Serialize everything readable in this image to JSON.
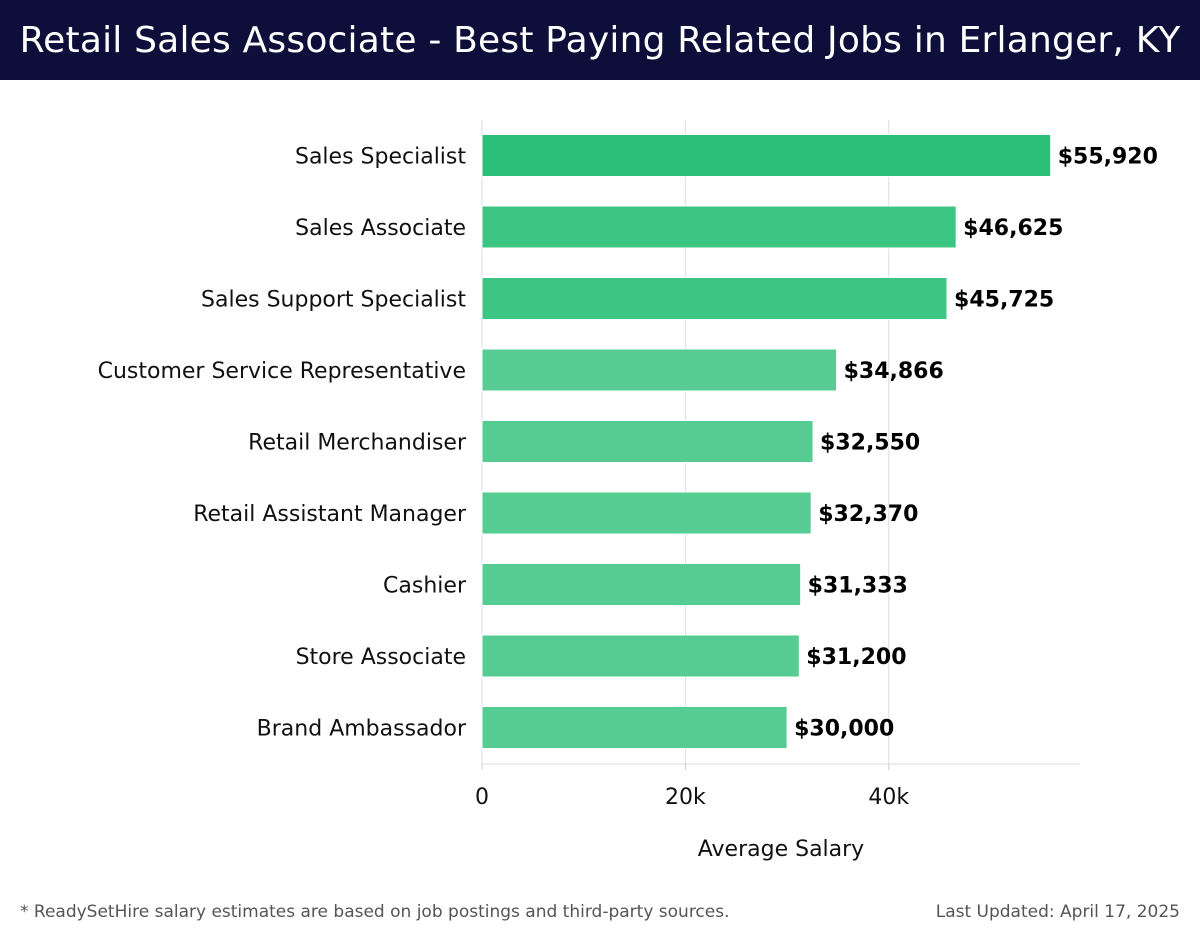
{
  "header": {
    "title": "Retail Sales Associate - Best Paying Related Jobs in Erlanger, KY"
  },
  "chart_data": {
    "type": "bar",
    "orientation": "horizontal",
    "categories": [
      "Sales Specialist",
      "Sales Associate",
      "Sales Support Specialist",
      "Customer Service Representative",
      "Retail Merchandiser",
      "Retail Assistant Manager",
      "Cashier",
      "Store Associate",
      "Brand Ambassador"
    ],
    "values": [
      55920,
      46625,
      45725,
      34866,
      32550,
      32370,
      31333,
      31200,
      30000
    ],
    "value_labels": [
      "$55,920",
      "$46,625",
      "$45,725",
      "$34,866",
      "$32,550",
      "$32,370",
      "$31,333",
      "$31,200",
      "$30,000"
    ],
    "xlabel": "Average Salary",
    "ylabel": "",
    "xlim": [
      0,
      58800
    ],
    "xticks": [
      0,
      20000,
      40000
    ],
    "xtick_labels": [
      "0",
      "20k",
      "40k"
    ],
    "grid": "vertical",
    "colors": {
      "bar_top": "#2bbf78",
      "bar_mid": "#3cc583",
      "bar_low": "#56cc92",
      "grid": "#dddddd"
    }
  },
  "footer": {
    "note": "* ReadySetHire salary estimates are based on job postings and third-party sources.",
    "updated": "Last Updated: April 17, 2025"
  }
}
